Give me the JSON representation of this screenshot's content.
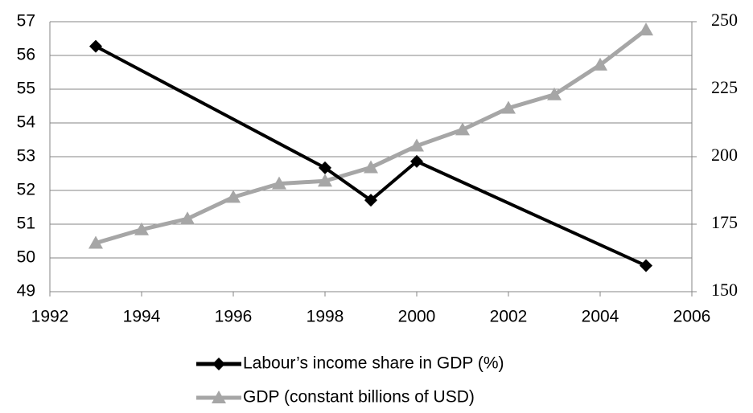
{
  "chart_data": {
    "type": "line",
    "x": [
      1993,
      1994,
      1995,
      1996,
      1997,
      1998,
      1999,
      2000,
      2001,
      2002,
      2003,
      2004,
      2005
    ],
    "series": [
      {
        "name": "Labour’s income share in GDP (%)",
        "color": "#000000",
        "marker": "diamond",
        "values": [
          56.27,
          null,
          null,
          null,
          null,
          52.67,
          51.71,
          52.86,
          null,
          null,
          null,
          null,
          49.77
        ]
      },
      {
        "name": "GDP (constant billions of USD)",
        "color": "#a6a6a6",
        "marker": "triangle",
        "axis": "y2",
        "values": [
          168,
          173,
          177,
          185,
          190,
          191,
          196,
          204,
          210,
          218,
          223,
          234,
          247
        ]
      }
    ],
    "xlim": [
      1992,
      2006
    ],
    "xticks": [
      1992,
      1994,
      1996,
      1998,
      2000,
      2002,
      2004,
      2006
    ],
    "ylim": [
      49,
      57
    ],
    "yticks": [
      49,
      50,
      51,
      52,
      53,
      54,
      55,
      56,
      57
    ],
    "y2lim": [
      150,
      250
    ],
    "y2ticks": [
      150,
      175,
      200,
      225,
      250
    ],
    "grid": true,
    "legend": "bottom"
  }
}
